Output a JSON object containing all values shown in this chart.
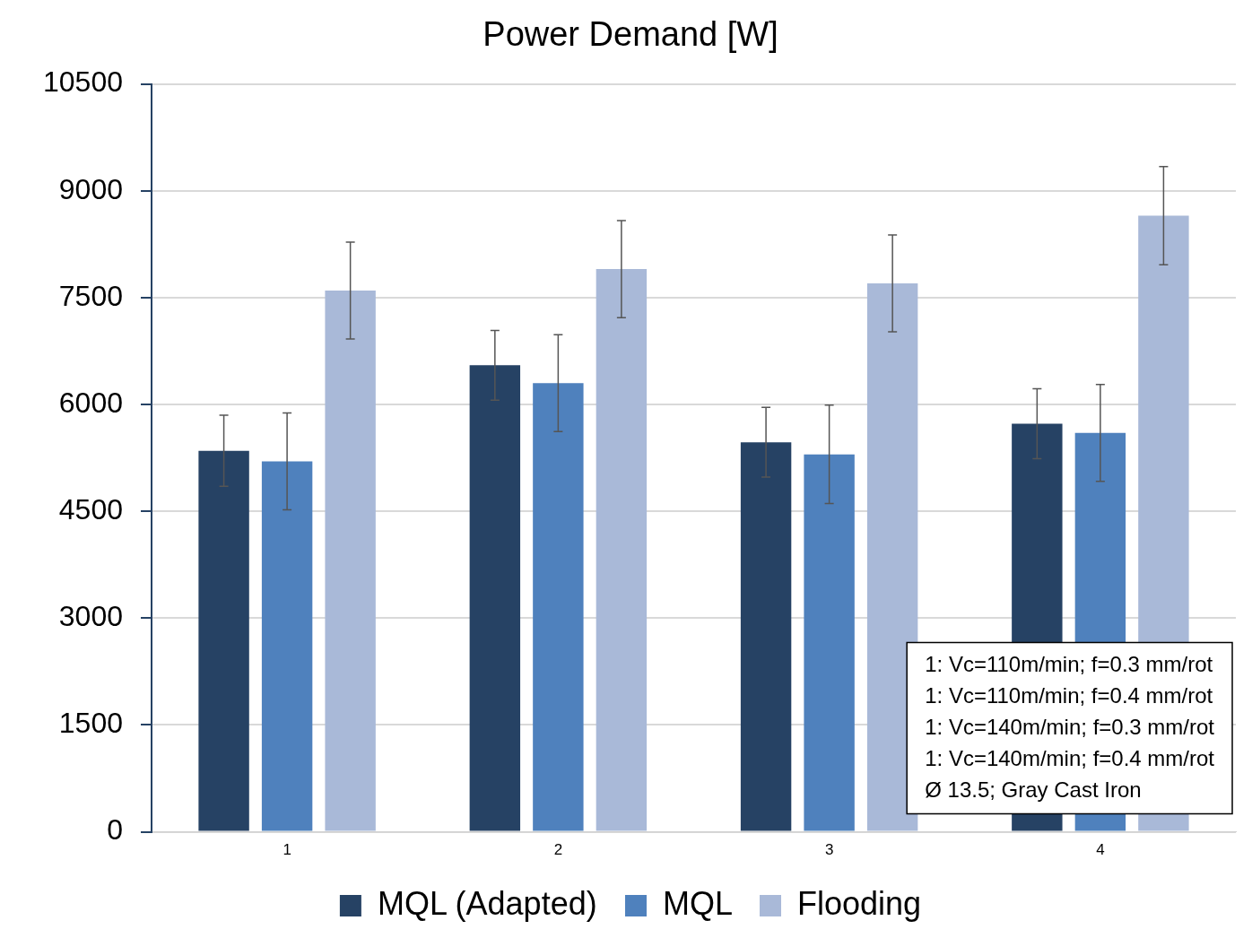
{
  "chart_data": {
    "type": "bar",
    "title": "Power Demand [W]",
    "categories": [
      "1",
      "2",
      "3",
      "4"
    ],
    "series": [
      {
        "name": "MQL (Adapted)",
        "color": "#264264",
        "values": [
          5350,
          6550,
          5470,
          5730
        ],
        "errors": [
          500,
          490,
          490,
          490
        ]
      },
      {
        "name": "MQL",
        "color": "#4f81bd",
        "values": [
          5200,
          6300,
          5300,
          5600
        ],
        "errors": [
          680,
          680,
          690,
          680
        ]
      },
      {
        "name": "Flooding",
        "color": "#a9b9d8",
        "values": [
          7600,
          7900,
          7700,
          8650
        ],
        "errors": [
          680,
          680,
          680,
          690
        ]
      }
    ],
    "ylim": [
      0,
      10500
    ],
    "yticks": [
      0,
      1500,
      3000,
      4500,
      6000,
      7500,
      9000,
      10500
    ],
    "grid": "y",
    "legend": "bottom",
    "annotations": [
      "1: Vc=110m/min; f=0.3 mm/rot",
      "1: Vc=110m/min; f=0.4 mm/rot",
      "1: Vc=140m/min; f=0.3 mm/rot",
      "1: Vc=140m/min; f=0.4 mm/rot",
      "Ø 13.5; Gray Cast Iron"
    ]
  }
}
